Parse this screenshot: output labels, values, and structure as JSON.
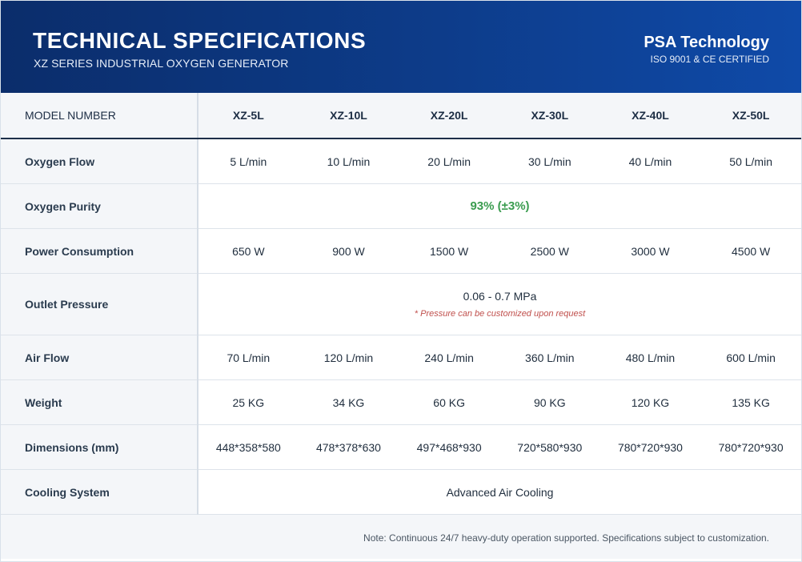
{
  "header": {
    "title": "TECHNICAL SPECIFICATIONS",
    "subtitle": "XZ SERIES INDUSTRIAL OXYGEN GENERATOR",
    "brand": "PSA Technology",
    "certification": "ISO 9001 & CE CERTIFIED"
  },
  "table": {
    "header_label": "MODEL NUMBER",
    "models": [
      "XZ-5L",
      "XZ-10L",
      "XZ-20L",
      "XZ-30L",
      "XZ-40L",
      "XZ-50L"
    ],
    "rows": {
      "oxygen_flow": {
        "label": "Oxygen Flow",
        "values": [
          "5 L/min",
          "10 L/min",
          "20 L/min",
          "30 L/min",
          "40 L/min",
          "50 L/min"
        ]
      },
      "oxygen_purity": {
        "label": "Oxygen Purity",
        "value": "93% (±3%)"
      },
      "power_consumption": {
        "label": "Power Consumption",
        "values": [
          "650 W",
          "900 W",
          "1500 W",
          "2500 W",
          "3000 W",
          "4500 W"
        ]
      },
      "outlet_pressure": {
        "label": "Outlet Pressure",
        "value": "0.06 - 0.7 MPa",
        "note": "* Pressure can be customized upon request"
      },
      "air_flow": {
        "label": "Air Flow",
        "values": [
          "70 L/min",
          "120 L/min",
          "240 L/min",
          "360 L/min",
          "480 L/min",
          "600 L/min"
        ]
      },
      "weight": {
        "label": "Weight",
        "values": [
          "25 KG",
          "34 KG",
          "60 KG",
          "90 KG",
          "120 KG",
          "135 KG"
        ]
      },
      "dimensions": {
        "label": "Dimensions (mm)",
        "values": [
          "448*358*580",
          "478*378*630",
          "497*468*930",
          "720*580*930",
          "780*720*930",
          "780*720*930"
        ]
      },
      "cooling_system": {
        "label": "Cooling System",
        "value": "Advanced Air Cooling"
      }
    }
  },
  "footer": {
    "note": "Note: Continuous 24/7 heavy-duty operation supported. Specifications subject to customization."
  },
  "colors": {
    "header_dark": "#0b2d6b",
    "header_light": "#0f4aa8",
    "purity_green": "#3a9c4f",
    "note_red": "#c0504d"
  }
}
